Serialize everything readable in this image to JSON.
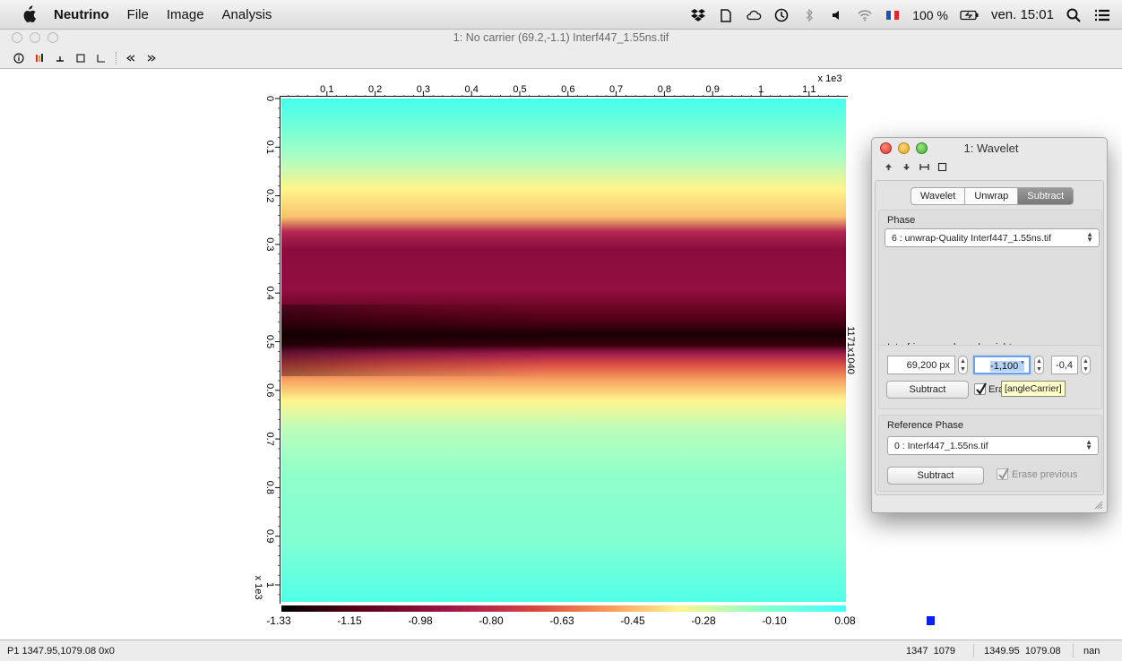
{
  "menubar": {
    "app_name": "Neutrino",
    "menus": [
      "File",
      "Image",
      "Analysis"
    ],
    "battery": "100 %",
    "clock": "ven. 15:01",
    "icons": [
      "dropbox-icon",
      "evernote-icon",
      "cloud-icon",
      "time-machine-icon",
      "bluetooth-icon",
      "volume-icon",
      "wifi-icon",
      "flag-icon",
      "battery-icon",
      "spotlight-icon",
      "notification-list-icon"
    ]
  },
  "window": {
    "title": "1: No carrier (69.2,-1.1) Interf447_1.55ns.tif",
    "toolbar_icons": [
      "info-icon",
      "colorbar-icon",
      "line-icon",
      "rect-icon",
      "axis-icon",
      "previous-icon",
      "next-icon"
    ]
  },
  "image_view": {
    "x_multiplier": "x 1e3",
    "y_multiplier": "x 1e3",
    "size_label": "1171x1040",
    "x_ticks": [
      "0.1",
      "0.2",
      "0.3",
      "0.4",
      "0.5",
      "0.6",
      "0.7",
      "0.8",
      "0.9",
      "1",
      "1.1"
    ],
    "y_ticks": [
      "0",
      "0.1",
      "0.2",
      "0.3",
      "0.4",
      "0.5",
      "0.6",
      "0.7",
      "0.8",
      "0.9",
      "1"
    ],
    "colorbar_ticks": [
      "-1.33",
      "-1.15",
      "-0.98",
      "-0.80",
      "-0.63",
      "-0.45",
      "-0.28",
      "-0.10",
      "0.08"
    ],
    "colormap": [
      "#000000",
      "#5c001a",
      "#a0154a",
      "#d9463f",
      "#f79a5a",
      "#fff48f",
      "#85ffce",
      "#40ffff"
    ]
  },
  "statusbar": {
    "left": "P1 1347.95,1079.08 0x0",
    "pixel": "1347  1079",
    "coords": "1349.95  1079.08",
    "value": "nan"
  },
  "wavelet_panel": {
    "title": "1: Wavelet",
    "tabs": [
      "Wavelet",
      "Unwrap",
      "Subtract"
    ],
    "active_tab": "Subtract",
    "phase_label": "Phase",
    "phase_select": "6 : unwrap-Quality Interf447_1.55ns.tif",
    "interfringe_label": "Interfringe, angle and weight",
    "interfringe_value": "69,200 px",
    "angle_value": "-1,100 ˚",
    "weight_value": "-0,4",
    "subtract_button": "Subtract",
    "erase_label": "Erase pre",
    "tooltip": "[angleCarrier]",
    "reference_label": "Reference Phase",
    "reference_select": "0 : Interf447_1.55ns.tif",
    "reference_subtract_button": "Subtract",
    "reference_erase_label": "Erase previous"
  }
}
